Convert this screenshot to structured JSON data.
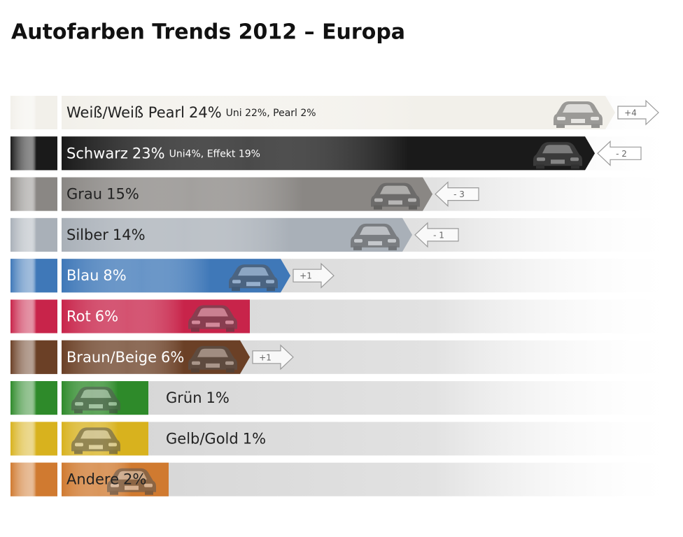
{
  "chart_data": {
    "type": "bar",
    "title": "Autofarben Trends 2012 – Europa",
    "categories": [
      "Weiß/Weiß Pearl",
      "Schwarz",
      "Grau",
      "Silber",
      "Blau",
      "Rot",
      "Braun/Beige",
      "Grün",
      "Gelb/Gold",
      "Andere"
    ],
    "values": [
      24,
      23,
      15,
      14,
      8,
      6,
      6,
      1,
      1,
      2
    ],
    "value_labels": [
      "24%",
      "23%",
      "15%",
      "14%",
      "8%",
      "6%",
      "6%",
      "1%",
      "1%",
      "2%"
    ],
    "notes": [
      "Uni 22%, Pearl 2%",
      "Uni4%, Effekt 19%",
      null,
      null,
      null,
      null,
      null,
      null,
      null,
      null
    ],
    "changes": [
      4,
      -2,
      -3,
      -1,
      1,
      null,
      1,
      null,
      null,
      null
    ],
    "change_labels": [
      "+4",
      "- 2",
      "- 3",
      "- 1",
      "+1",
      null,
      "+1",
      null,
      null,
      null
    ],
    "colors": [
      "#f2f0ea",
      "#1a1a1a",
      "#8a8784",
      "#a9b0b8",
      "#3f78b8",
      "#c8244a",
      "#6b4026",
      "#2e8a2a",
      "#d8b21e",
      "#d07a30"
    ]
  }
}
